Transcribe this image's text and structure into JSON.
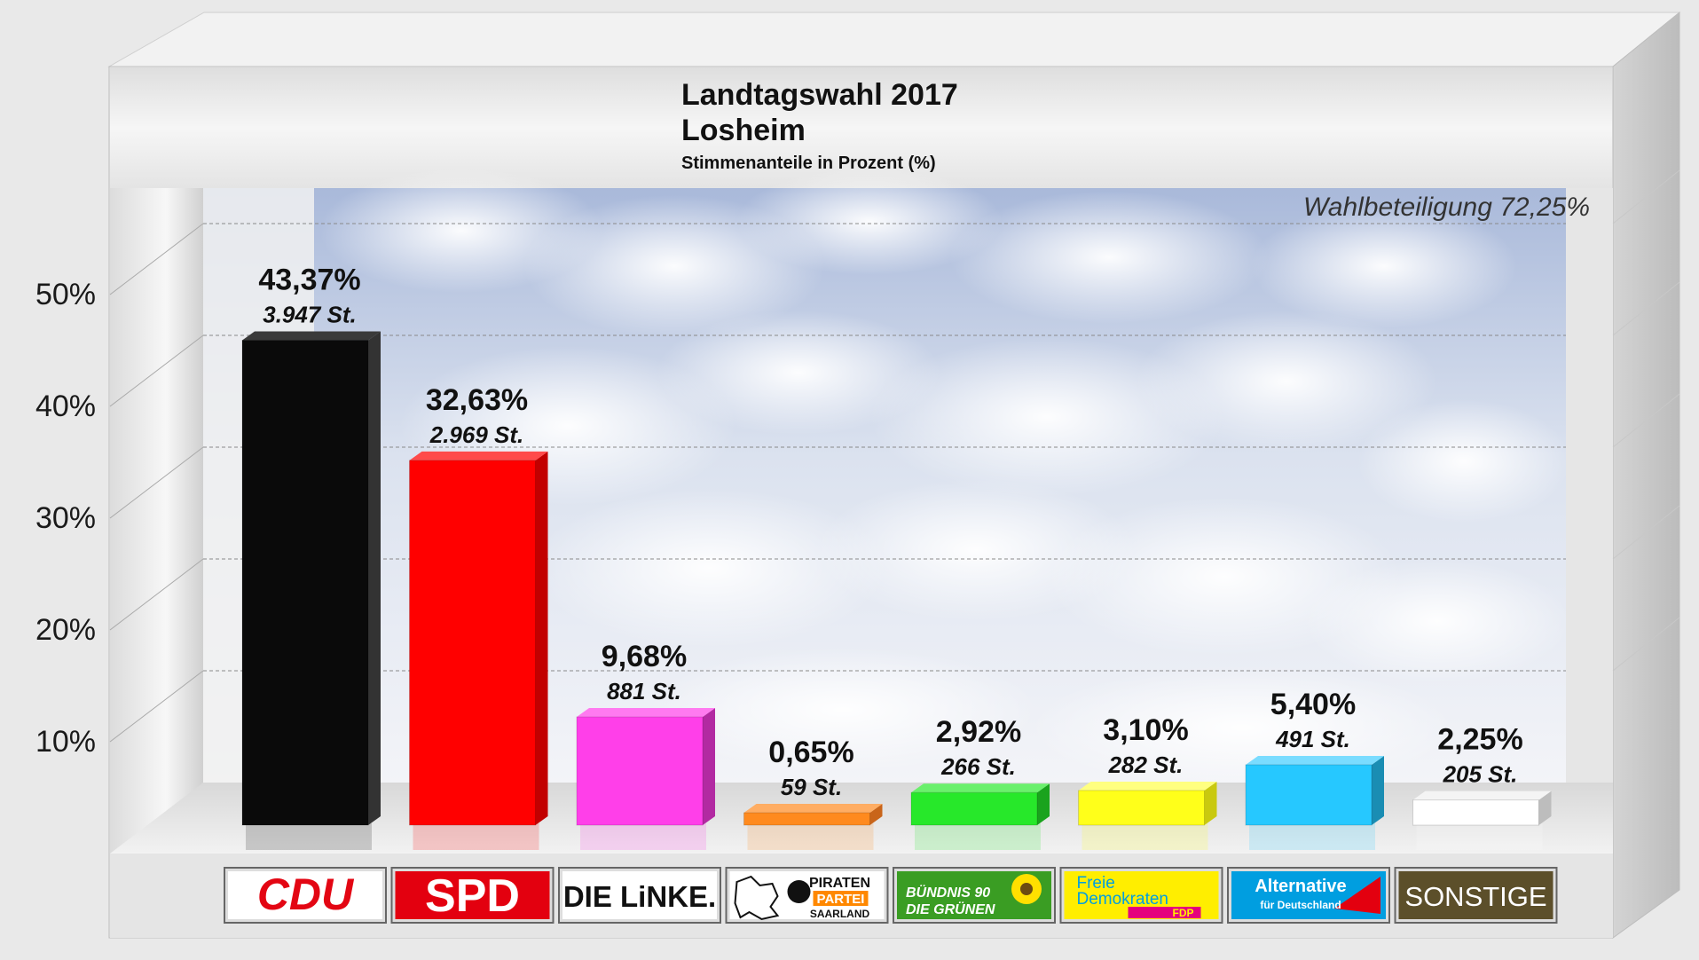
{
  "header": {
    "title": "Landtagswahl 2017",
    "location": "Losheim",
    "subtitle": "Stimmenanteile in Prozent (%)"
  },
  "turnout_label": "Wahlbeteiligung 72,25%",
  "chart_data": {
    "type": "bar",
    "title": "Landtagswahl 2017",
    "subtitle": "Stimmenanteile in Prozent (%)",
    "categories": [
      "CDU",
      "SPD",
      "DIE LINKE.",
      "PIRATEN PARTEI SAARLAND",
      "BÜNDNIS 90 DIE GRÜNEN",
      "Freie Demokraten FDP",
      "Alternative für Deutschland",
      "SONSTIGE"
    ],
    "values": [
      43.37,
      32.63,
      9.68,
      0.65,
      2.92,
      3.1,
      5.4,
      2.25
    ],
    "value_labels": [
      "43,37%",
      "32,63%",
      "9,68%",
      "0,65%",
      "2,92%",
      "3,10%",
      "5,40%",
      "2,25%"
    ],
    "vote_labels": [
      "3.947 St.",
      "2.969 St.",
      "881 St.",
      "59 St.",
      "266 St.",
      "282 St.",
      "491 St.",
      "205 St."
    ],
    "votes": [
      3947,
      2969,
      881,
      59,
      266,
      282,
      491,
      205
    ],
    "colors": [
      "#0a0a0a",
      "#ff0000",
      "#ff3fe9",
      "#ff8a1e",
      "#27e82a",
      "#ffff1a",
      "#26c8ff",
      "#ffffff"
    ],
    "side_colors": [
      "#333333",
      "#c20000",
      "#b22aa2",
      "#c9651a",
      "#1aa31d",
      "#c9c90f",
      "#1a8db3",
      "#bdbdbd"
    ],
    "top_colors": [
      "#3a3a3a",
      "#ff4a4a",
      "#ff7af0",
      "#ffad63",
      "#6af06c",
      "#ffff80",
      "#7adcff",
      "#f4f4f4"
    ],
    "y_ticks": [
      "10%",
      "20%",
      "30%",
      "40%",
      "50%"
    ],
    "ylim": [
      0,
      50
    ],
    "grid": true,
    "legend_logos": [
      {
        "text": "CDU",
        "bg": "#ffffff",
        "fg": "#e30613"
      },
      {
        "text": "SPD",
        "bg": "#e3000f",
        "fg": "#ffffff"
      },
      {
        "text": "DIE LiNKE.",
        "bg": "#ffffff",
        "fg": "#111111"
      },
      {
        "text": "PIRATEN",
        "text2": "PARTEI",
        "text3": "SAARLAND",
        "bg": "#ffffff",
        "fg": "#111111",
        "accent": "#ff8800"
      },
      {
        "text": "BÜNDNIS 90",
        "text2": "DIE GRÜNEN",
        "bg": "#3a9d23",
        "fg": "#ffffff"
      },
      {
        "text": "Freie",
        "text2": "Demokraten",
        "text3": "FDP",
        "bg": "#ffee00",
        "fg": "#009ee0",
        "accent": "#e5007d"
      },
      {
        "text": "Alternative",
        "text2": "für Deutschland",
        "bg": "#009ee0",
        "fg": "#ffffff",
        "accent": "#e3000f"
      },
      {
        "text": "SONSTIGE",
        "bg": "#5c4f2a",
        "fg": "#ffffff"
      }
    ]
  }
}
